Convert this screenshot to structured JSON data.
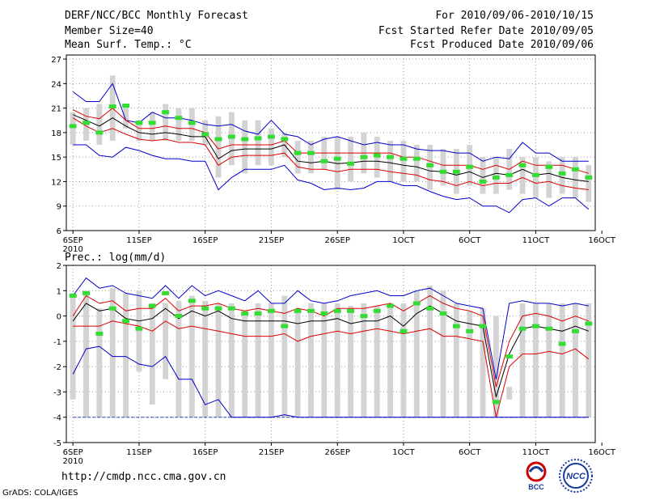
{
  "header": {
    "title": "DERF/NCC/BCC Monthly Forecast",
    "member": "Member Size=40",
    "variable": "Mean Surf. Temp.: °C",
    "period": "For 2010/09/06-2010/10/15",
    "start": "Fcst Started Refer Date 2010/09/05",
    "produced": "Fcst Produced Date 2010/09/06"
  },
  "footer": {
    "url": "http://cmdp.ncc.cma.gov.cn",
    "credit": "GrADS: COLA/IGES"
  },
  "logos": {
    "bcc": "BCC",
    "ncc": "NCC"
  },
  "colors": {
    "envelope": "#0000cc",
    "spread": "#dd0000",
    "mean": "#000000",
    "obs": "#33dd33",
    "box": "#d3d3d3"
  },
  "chart_data": [
    {
      "type": "line",
      "title": "Mean Surf. Temp.: °C",
      "x": [
        1,
        2,
        3,
        4,
        5,
        6,
        7,
        8,
        9,
        10,
        11,
        12,
        13,
        14,
        15,
        16,
        17,
        18,
        19,
        20,
        21,
        22,
        23,
        24,
        25,
        26,
        27,
        28,
        29,
        30,
        31,
        32,
        33,
        34,
        35,
        36,
        37,
        38,
        39,
        40
      ],
      "xlim": [
        0.5,
        40.5
      ],
      "xticks": [
        1,
        6,
        11,
        16,
        21,
        26,
        31,
        36,
        41
      ],
      "xticklabels": [
        "6SEP",
        "11SEP",
        "16SEP",
        "21SEP",
        "26SEP",
        "1OCT",
        "6OCT",
        "11OCT",
        "16OCT"
      ],
      "year_label": "2010",
      "ylim": [
        6,
        27.5
      ],
      "yticks": [
        6,
        9,
        12,
        15,
        18,
        21,
        24,
        27
      ],
      "ybox_low": [
        16.5,
        17,
        16.5,
        17,
        18.5,
        17,
        17,
        17,
        17,
        17,
        16.5,
        12.5,
        14,
        13,
        14,
        14,
        15,
        13,
        13,
        13.5,
        11,
        12,
        13,
        12.5,
        12,
        12,
        12,
        11,
        11.5,
        10.5,
        11.5,
        10.5,
        10.5,
        11,
        10.5,
        10,
        10,
        10.5,
        10,
        9.5
      ],
      "ybox_high": [
        20.5,
        21,
        21.5,
        25,
        21.5,
        19.5,
        20.5,
        21.5,
        21,
        21,
        19.5,
        20,
        20.5,
        19.5,
        19.5,
        18.5,
        18,
        17,
        17,
        17.5,
        17.5,
        17.5,
        18,
        17.5,
        17,
        17,
        16.5,
        16.5,
        16,
        16,
        16.5,
        15,
        15,
        16,
        15,
        15,
        14.5,
        15,
        15,
        14
      ],
      "series": [
        {
          "name": "max",
          "values": [
            23,
            21.8,
            21.8,
            24,
            19.5,
            19.2,
            20.5,
            19.8,
            19.8,
            19.5,
            19,
            18.8,
            19,
            18.2,
            17.8,
            19.5,
            17.8,
            17.5,
            16.5,
            17.2,
            17.5,
            17,
            16.5,
            16.8,
            16.5,
            16.5,
            16,
            15.8,
            15.8,
            15.5,
            15.5,
            14.5,
            15,
            14.8,
            16.8,
            15.5,
            15.5,
            14.5,
            14.5,
            14.5
          ]
        },
        {
          "name": "spread_high",
          "values": [
            20.8,
            20,
            19.7,
            21,
            19.5,
            18.5,
            18.5,
            18.8,
            18.5,
            18.5,
            18,
            16,
            16.5,
            16.5,
            16.5,
            16.5,
            17,
            15.5,
            15.5,
            15.5,
            15.5,
            15.5,
            15.5,
            15.5,
            15.5,
            15,
            15,
            14.5,
            14,
            14,
            14,
            13.5,
            14,
            13.5,
            14.5,
            14,
            14,
            14,
            13.5,
            13
          ]
        },
        {
          "name": "ensemble_mean",
          "values": [
            20.2,
            19.5,
            18.8,
            19.8,
            18.8,
            18,
            17.8,
            18,
            17.8,
            17.5,
            17.5,
            14.8,
            15.8,
            16,
            16,
            16,
            16.5,
            14.5,
            14.3,
            14.5,
            14.2,
            14.3,
            14.5,
            14.5,
            14.3,
            14,
            13.8,
            13.3,
            13.2,
            12.8,
            13.2,
            12.5,
            13,
            12.8,
            13.5,
            12.8,
            13,
            12.5,
            12.2,
            12
          ]
        },
        {
          "name": "spread_low",
          "values": [
            19.8,
            18.8,
            18,
            18.5,
            17.8,
            17.2,
            17,
            17.2,
            16.8,
            16.8,
            16.5,
            14,
            15,
            15.2,
            15.2,
            15.2,
            15.5,
            13.8,
            13.5,
            13.5,
            13.2,
            13.5,
            13.5,
            13.5,
            13.2,
            13,
            12.8,
            12.2,
            12,
            11.5,
            12,
            11.5,
            11.8,
            11.8,
            12.5,
            11.8,
            12,
            11.5,
            11.2,
            11
          ]
        },
        {
          "name": "min",
          "values": [
            16.5,
            16.5,
            15.2,
            15,
            16.2,
            15.8,
            15.2,
            14.8,
            14.8,
            14.5,
            14.5,
            11,
            12.5,
            13.5,
            13.5,
            13.5,
            14,
            12.2,
            11.8,
            11,
            11.2,
            11,
            11.2,
            12,
            12,
            11.5,
            11.5,
            10.8,
            10.2,
            9.8,
            10,
            9,
            9,
            8.2,
            9.8,
            10,
            9,
            10,
            10,
            8.6
          ]
        }
      ],
      "observed": [
        18.8,
        19.2,
        18,
        21.2,
        21.3,
        19.2,
        19.2,
        20.5,
        19.8,
        19.2,
        17.8,
        17.2,
        17.5,
        17.2,
        17.3,
        17.5,
        17.2,
        15.5,
        15.5,
        14.5,
        14.8,
        14.2,
        15,
        15.2,
        15,
        14.8,
        14.8,
        14,
        13.2,
        13.2,
        13.8,
        12,
        12.5,
        12.8,
        14,
        12.8,
        13.8,
        13,
        13.5,
        12.5
      ]
    },
    {
      "type": "line",
      "title": "Prec.: log(mm/d)",
      "x": [
        1,
        2,
        3,
        4,
        5,
        6,
        7,
        8,
        9,
        10,
        11,
        12,
        13,
        14,
        15,
        16,
        17,
        18,
        19,
        20,
        21,
        22,
        23,
        24,
        25,
        26,
        27,
        28,
        29,
        30,
        31,
        32,
        33,
        34,
        35,
        36,
        37,
        38,
        39,
        40
      ],
      "xlim": [
        0.5,
        40.5
      ],
      "xticks": [
        1,
        6,
        11,
        16,
        21,
        26,
        31,
        36,
        41
      ],
      "xticklabels": [
        "6SEP",
        "11SEP",
        "16SEP",
        "21SEP",
        "26SEP",
        "1OCT",
        "6OCT",
        "11OCT",
        "16OCT"
      ],
      "year_label": "2010",
      "ylim": [
        -5,
        2
      ],
      "yticks": [
        -5,
        -4,
        -3,
        -2,
        -1,
        0,
        1,
        2
      ],
      "ybox_low": [
        -3.3,
        -4,
        -4,
        -4,
        -4,
        -2.2,
        -3.5,
        -2.5,
        -4,
        -4,
        -4,
        -4,
        -4,
        -4,
        -4,
        -4,
        -4,
        -4,
        -4,
        -4,
        -4,
        -4,
        -4,
        -4,
        -4,
        -4,
        -4,
        -4,
        -4,
        -4,
        -4,
        -4,
        -4,
        -3.3,
        -4,
        -4,
        -4,
        -4,
        -4,
        -4
      ],
      "ybox_high": [
        0.9,
        1,
        0.3,
        1.1,
        0.9,
        1,
        0.5,
        0.5,
        0.6,
        0.8,
        0.6,
        0.5,
        0.5,
        0.2,
        0.5,
        0.5,
        0.8,
        0.3,
        0.5,
        0.5,
        0.5,
        0.4,
        0.5,
        0.4,
        0.5,
        0.5,
        1,
        1.2,
        1,
        0.5,
        0.2,
        0.3,
        0,
        -2.8,
        0.5,
        0.5,
        0.5,
        0.5,
        0.5,
        0.5
      ],
      "series": [
        {
          "name": "max",
          "values": [
            0.8,
            1.5,
            1.1,
            1.2,
            0.9,
            0.8,
            0.7,
            1.2,
            0.7,
            1.2,
            0.8,
            1,
            0.8,
            0.6,
            1,
            0.5,
            0.5,
            1,
            0.6,
            0.5,
            0.6,
            0.8,
            0.9,
            1,
            0.8,
            0.8,
            1,
            1.1,
            0.8,
            0.5,
            0.4,
            0.3,
            -2.5,
            0.5,
            0.6,
            0.5,
            0.5,
            0.4,
            0.5,
            0.4
          ]
        },
        {
          "name": "spread_high",
          "values": [
            0,
            0.8,
            0.5,
            0.6,
            0.2,
            0.3,
            0.3,
            0.7,
            0.2,
            0.4,
            0.4,
            0.5,
            0.3,
            0.2,
            0.3,
            0.2,
            0.1,
            0.3,
            0.2,
            0,
            0.3,
            0.3,
            0.3,
            0.4,
            0.5,
            0.2,
            0.5,
            0.8,
            0.5,
            0.3,
            0.2,
            0,
            -2.8,
            -1,
            0,
            0.1,
            0,
            -0.2,
            0,
            -0.2
          ]
        },
        {
          "name": "ensemble_mean",
          "values": [
            -0.2,
            0.5,
            0.2,
            0.3,
            -0.1,
            -0.2,
            -0.1,
            0.3,
            -0.1,
            0.2,
            0,
            0.2,
            -0.1,
            -0.2,
            -0.2,
            -0.2,
            -0.2,
            -0.3,
            -0.2,
            -0.2,
            -0.1,
            -0.3,
            -0.2,
            -0.2,
            0,
            -0.4,
            0.1,
            0.4,
            0.1,
            -0.2,
            -0.3,
            -0.4,
            -3.2,
            -1.5,
            -0.5,
            -0.4,
            -0.5,
            -0.6,
            -0.4,
            -0.6
          ]
        },
        {
          "name": "spread_low",
          "values": [
            -0.4,
            -0.4,
            -0.4,
            -0.2,
            -0.3,
            -0.4,
            -0.6,
            -0.2,
            -0.5,
            -0.4,
            -0.5,
            -0.6,
            -0.7,
            -0.8,
            -0.8,
            -0.8,
            -0.7,
            -1,
            -0.8,
            -0.7,
            -0.6,
            -0.7,
            -0.6,
            -0.5,
            -0.6,
            -0.7,
            -0.6,
            -0.5,
            -0.8,
            -0.8,
            -0.9,
            -1,
            -4,
            -2,
            -1.5,
            -1.5,
            -1.4,
            -1.5,
            -1.3,
            -1.7
          ]
        },
        {
          "name": "min",
          "values": [
            -2.3,
            -1.3,
            -1.2,
            -1.6,
            -1.6,
            -1.9,
            -2,
            -1.6,
            -2.5,
            -2.5,
            -3.5,
            -3.3,
            -4,
            -4,
            -4,
            -4,
            -3.9,
            -4,
            -4,
            -4,
            -4,
            -4,
            -4,
            -4,
            -4,
            -4,
            -4,
            -4,
            -4,
            -4,
            -4,
            -4,
            -4,
            -4,
            -4,
            -4,
            -4,
            -4,
            -4,
            -4
          ]
        }
      ],
      "observed": [
        0.8,
        0.9,
        -0.7,
        0.3,
        -0.2,
        -0.5,
        0.4,
        0.9,
        0,
        0.6,
        0.3,
        0.3,
        0.3,
        0.1,
        0.1,
        0.2,
        -0.4,
        0.2,
        0.2,
        0.1,
        0.2,
        0.2,
        0,
        0.2,
        0.4,
        -0.6,
        0.5,
        0.3,
        0.1,
        -0.4,
        -0.6,
        -0.4,
        -3.4,
        -1.6,
        -0.5,
        -0.4,
        -0.5,
        -1.1,
        -0.6,
        -0.3
      ]
    }
  ]
}
